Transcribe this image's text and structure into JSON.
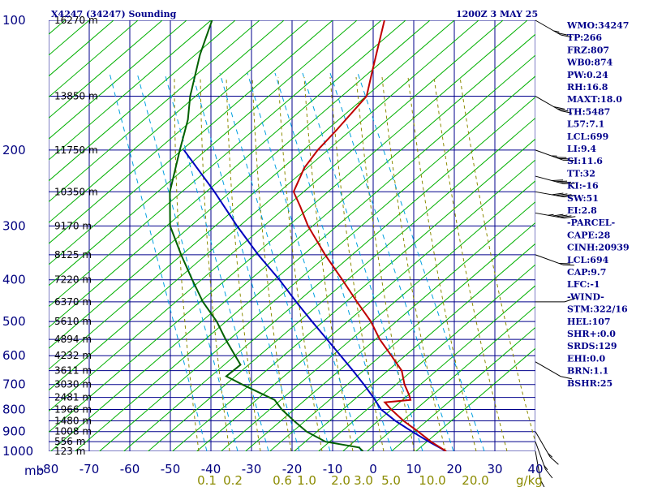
{
  "header": {
    "station": "X4247 (34247) Sounding",
    "time": "1200Z  3 MAY 25"
  },
  "indices": [
    "WMO:34247",
    "TP:266",
    "FRZ:807",
    "WB0:874",
    "PW:0.24",
    "RH:16.8",
    "MAXT:18.0",
    "TH:5487",
    "L57:7.1",
    "LCL:699",
    "LI:9.4",
    "SI:11.6",
    "TT:32",
    "KI:-16",
    "SW:51",
    "EI:2.8",
    "-PARCEL-",
    "CAPE:28",
    "CINH:20939",
    "LCL:694",
    "CAP:9.7",
    "LFC:-1",
    "-WIND-",
    "STM:322/16",
    "HEL:107",
    "SHR+:0.0",
    "SRDS:129",
    "EHI:0.0",
    "BRN:1.1",
    "BSHR:25"
  ],
  "colors": {
    "isobar": "#00008b",
    "isotherm": "#00008b",
    "dry_adiabat": "#00b000",
    "moist_adiabat": "#8b8b00",
    "mixing_ratio": "#00a0e0",
    "temperature": "#c00000",
    "dewpoint": "#006000",
    "parcel": "#0000c0",
    "wind": "#000000"
  },
  "chart_data": {
    "type": "skew-t log-p sounding",
    "x_unit_label": "mb",
    "pressure_levels_mb": [
      100,
      200,
      300,
      400,
      500,
      600,
      700,
      800,
      900,
      1000
    ],
    "pressure_tick_labels": [
      "100",
      "200",
      "300",
      "400",
      "500",
      "600",
      "700",
      "800",
      "900",
      "1000"
    ],
    "mb_label": "mb",
    "temperature_ticks_c": [
      -80,
      -70,
      -60,
      -50,
      -40,
      -30,
      -20,
      -10,
      0,
      10,
      20,
      30,
      40
    ],
    "temperature_tick_labels": [
      "-80",
      "-70",
      "-60",
      "-50",
      "-40",
      "-30",
      "-20",
      "-10",
      "0",
      "10",
      "20",
      "30",
      "40"
    ],
    "mixing_ratio_labels": [
      "0.1",
      "0.2",
      "0.6",
      "1.0",
      "2.0",
      "3.0",
      "5.0",
      "10.0",
      "20.0"
    ],
    "mixing_ratio_unit": "g/kg",
    "mixing_ratio_unit_label": "g/kg",
    "height_labels": [
      {
        "p": 100,
        "h": "16270 m"
      },
      {
        "p": 150,
        "h": "13850 m"
      },
      {
        "p": 200,
        "h": "11750 m"
      },
      {
        "p": 250,
        "h": "10350 m"
      },
      {
        "p": 300,
        "h": "9170 m"
      },
      {
        "p": 350,
        "h": "8125 m"
      },
      {
        "p": 400,
        "h": "7220 m"
      },
      {
        "p": 450,
        "h": "6370 m"
      },
      {
        "p": 500,
        "h": "5610 m"
      },
      {
        "p": 550,
        "h": "4894 m"
      },
      {
        "p": 600,
        "h": "4232 m"
      },
      {
        "p": 650,
        "h": "3611 m"
      },
      {
        "p": 700,
        "h": "3030 m"
      },
      {
        "p": 750,
        "h": "2481 m"
      },
      {
        "p": 800,
        "h": "1966 m"
      },
      {
        "p": 850,
        "h": "1480 m"
      },
      {
        "p": 900,
        "h": "1008 m"
      },
      {
        "p": 950,
        "h": "556 m"
      },
      {
        "p": 1000,
        "h": "123 m"
      }
    ],
    "temperature_profile": [
      {
        "p": 1000,
        "t": 18.0
      },
      {
        "p": 950,
        "t": 13.0
      },
      {
        "p": 900,
        "t": 8.5
      },
      {
        "p": 850,
        "t": 3.5
      },
      {
        "p": 800,
        "t": -1.0
      },
      {
        "p": 770,
        "t": -3.5
      },
      {
        "p": 760,
        "t": 2.5
      },
      {
        "p": 740,
        "t": 1.5
      },
      {
        "p": 700,
        "t": -1.0
      },
      {
        "p": 650,
        "t": -3.5
      },
      {
        "p": 600,
        "t": -8.0
      },
      {
        "p": 550,
        "t": -13.0
      },
      {
        "p": 500,
        "t": -17.5
      },
      {
        "p": 450,
        "t": -23.5
      },
      {
        "p": 400,
        "t": -30.0
      },
      {
        "p": 350,
        "t": -37.5
      },
      {
        "p": 300,
        "t": -45.5
      },
      {
        "p": 270,
        "t": -50.0
      },
      {
        "p": 250,
        "t": -53.5
      },
      {
        "p": 220,
        "t": -54.0
      },
      {
        "p": 200,
        "t": -53.0
      },
      {
        "p": 180,
        "t": -51.0
      },
      {
        "p": 150,
        "t": -48.0
      },
      {
        "p": 130,
        "t": -50.0
      },
      {
        "p": 100,
        "t": -53.5
      }
    ],
    "dewpoint_profile": [
      {
        "p": 1000,
        "t": -2.5
      },
      {
        "p": 980,
        "t": -4.0
      },
      {
        "p": 950,
        "t": -13.0
      },
      {
        "p": 900,
        "t": -19.0
      },
      {
        "p": 850,
        "t": -23.5
      },
      {
        "p": 800,
        "t": -28.0
      },
      {
        "p": 760,
        "t": -31.0
      },
      {
        "p": 700,
        "t": -41.0
      },
      {
        "p": 670,
        "t": -46.0
      },
      {
        "p": 630,
        "t": -44.0
      },
      {
        "p": 600,
        "t": -46.5
      },
      {
        "p": 550,
        "t": -51.0
      },
      {
        "p": 500,
        "t": -55.5
      },
      {
        "p": 450,
        "t": -61.5
      },
      {
        "p": 400,
        "t": -67.0
      },
      {
        "p": 350,
        "t": -73.0
      },
      {
        "p": 300,
        "t": -79.5
      },
      {
        "p": 250,
        "t": -84.0
      },
      {
        "p": 200,
        "t": -87.0
      },
      {
        "p": 170,
        "t": -89.0
      },
      {
        "p": 150,
        "t": -91.5
      },
      {
        "p": 120,
        "t": -94.5
      },
      {
        "p": 100,
        "t": -96.0
      }
    ],
    "parcel_profile": [
      {
        "p": 1000,
        "t": 18.0
      },
      {
        "p": 950,
        "t": 12.5
      },
      {
        "p": 900,
        "t": 7.0
      },
      {
        "p": 850,
        "t": 1.5
      },
      {
        "p": 800,
        "t": -3.5
      },
      {
        "p": 750,
        "t": -7.0
      },
      {
        "p": 700,
        "t": -11.0
      },
      {
        "p": 650,
        "t": -15.5
      },
      {
        "p": 600,
        "t": -20.5
      },
      {
        "p": 550,
        "t": -26.0
      },
      {
        "p": 500,
        "t": -32.0
      },
      {
        "p": 450,
        "t": -38.5
      },
      {
        "p": 400,
        "t": -45.5
      },
      {
        "p": 350,
        "t": -54.0
      },
      {
        "p": 300,
        "t": -63.0
      },
      {
        "p": 250,
        "t": -73.0
      },
      {
        "p": 200,
        "t": -86.0
      }
    ],
    "wind_barbs": [
      {
        "p": 100,
        "dir": 300,
        "spd": 25
      },
      {
        "p": 150,
        "dir": 300,
        "spd": 30
      },
      {
        "p": 200,
        "dir": 290,
        "spd": 35
      },
      {
        "p": 230,
        "dir": 285,
        "spd": 40
      },
      {
        "p": 250,
        "dir": 280,
        "spd": 40
      },
      {
        "p": 280,
        "dir": 280,
        "spd": 45
      },
      {
        "p": 350,
        "dir": 290,
        "spd": 20
      },
      {
        "p": 450,
        "dir": 270,
        "spd": 10
      },
      {
        "p": 620,
        "dir": 300,
        "spd": 10
      },
      {
        "p": 900,
        "dir": 330,
        "spd": 15
      },
      {
        "p": 950,
        "dir": 340,
        "spd": 15
      },
      {
        "p": 1000,
        "dir": 350,
        "spd": 10
      }
    ],
    "pressure_range_mb": [
      1000,
      100
    ],
    "temperature_range_c": [
      -80,
      40
    ]
  }
}
